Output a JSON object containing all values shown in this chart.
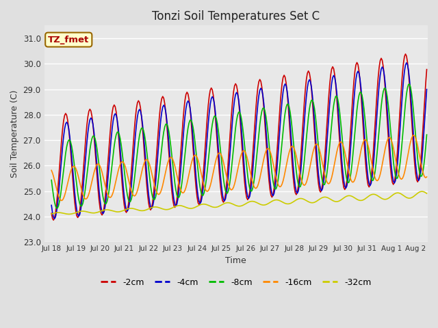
{
  "title": "Tonzi Soil Temperatures Set C",
  "xlabel": "Time",
  "ylabel": "Soil Temperature (C)",
  "ylim": [
    23.0,
    31.5
  ],
  "annotation": "TZ_fmet",
  "fig_bg": "#e0e0e0",
  "plot_bg": "#e8e8e8",
  "series": {
    "-2cm": {
      "color": "#cc0000",
      "lw": 1.2
    },
    "-4cm": {
      "color": "#0000cc",
      "lw": 1.2
    },
    "-8cm": {
      "color": "#00bb00",
      "lw": 1.2
    },
    "-16cm": {
      "color": "#ff8800",
      "lw": 1.2
    },
    "-32cm": {
      "color": "#cccc00",
      "lw": 1.2
    }
  },
  "xtick_labels": [
    "Jul 18",
    "Jul 19",
    "Jul 20",
    "Jul 21",
    "Jul 22",
    "Jul 23",
    "Jul 24",
    "Jul 25",
    "Jul 26",
    "Jul 27",
    "Jul 28",
    "Jul 29",
    "Jul 30",
    "Jul 31",
    "Aug 1",
    "Aug 2"
  ],
  "ytick_values": [
    23.0,
    24.0,
    25.0,
    26.0,
    27.0,
    28.0,
    29.0,
    30.0,
    31.0
  ],
  "ytick_labels": [
    "23.0",
    "24.0",
    "25.0",
    "26.0",
    "27.0",
    "28.0",
    "29.0",
    "30.0",
    "31.0"
  ]
}
